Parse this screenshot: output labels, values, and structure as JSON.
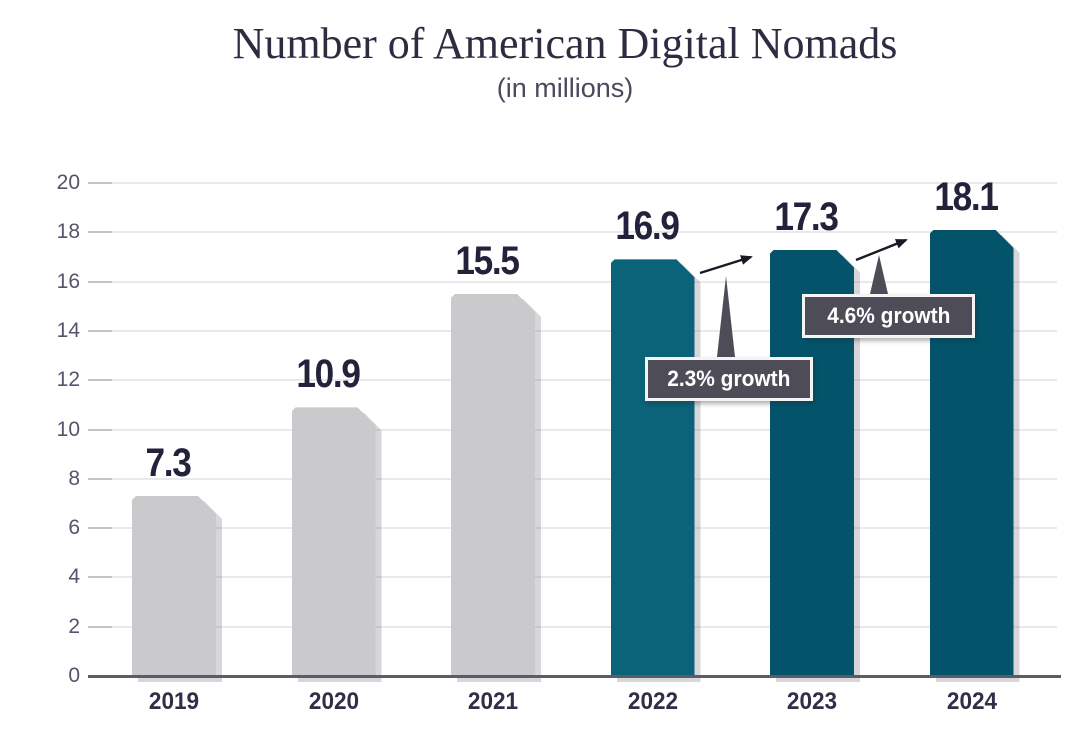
{
  "header": {
    "title": "Number of American Digital Nomads",
    "subtitle": "(in millions)"
  },
  "chart_data": {
    "type": "bar",
    "title": "Number of American Digital Nomads",
    "subtitle": "(in millions)",
    "categories": [
      "2019",
      "2020",
      "2021",
      "2022",
      "2023",
      "2024"
    ],
    "values": [
      7.3,
      10.9,
      15.5,
      16.9,
      17.3,
      18.1
    ],
    "value_labels": [
      "7.3",
      "10.9",
      "15.5",
      "16.9",
      "17.3",
      "18.1"
    ],
    "bar_colors": [
      "#cacacd",
      "#cacacd",
      "#cacacd",
      "#0b6379",
      "#03546a",
      "#03546a"
    ],
    "xlabel": "",
    "ylabel": "",
    "ylim": [
      0,
      20
    ],
    "ytick_step": 2,
    "grid": true,
    "legend_position": "none",
    "annotations": [
      {
        "label": "2.3% growth",
        "from": "2022",
        "to": "2023"
      },
      {
        "label": "4.6% growth",
        "from": "2023",
        "to": "2024"
      }
    ]
  },
  "colors": {
    "past_bar": "#cacacd",
    "highlight_bar": "#0b6379",
    "projection_bar": "#03546a",
    "callout_bg": "#4e4d57",
    "callout_border": "#f4f4f4",
    "callout_text": "#ffffff",
    "arrow": "#1b1a24",
    "axis_line": "#5c5b66",
    "gridline": "#e9e9ed",
    "title_text": "#2d2c41",
    "subtitle_text": "#4a495e",
    "value_text": "#23223b",
    "year_text": "#302f47",
    "tick_text": "#55546a"
  }
}
